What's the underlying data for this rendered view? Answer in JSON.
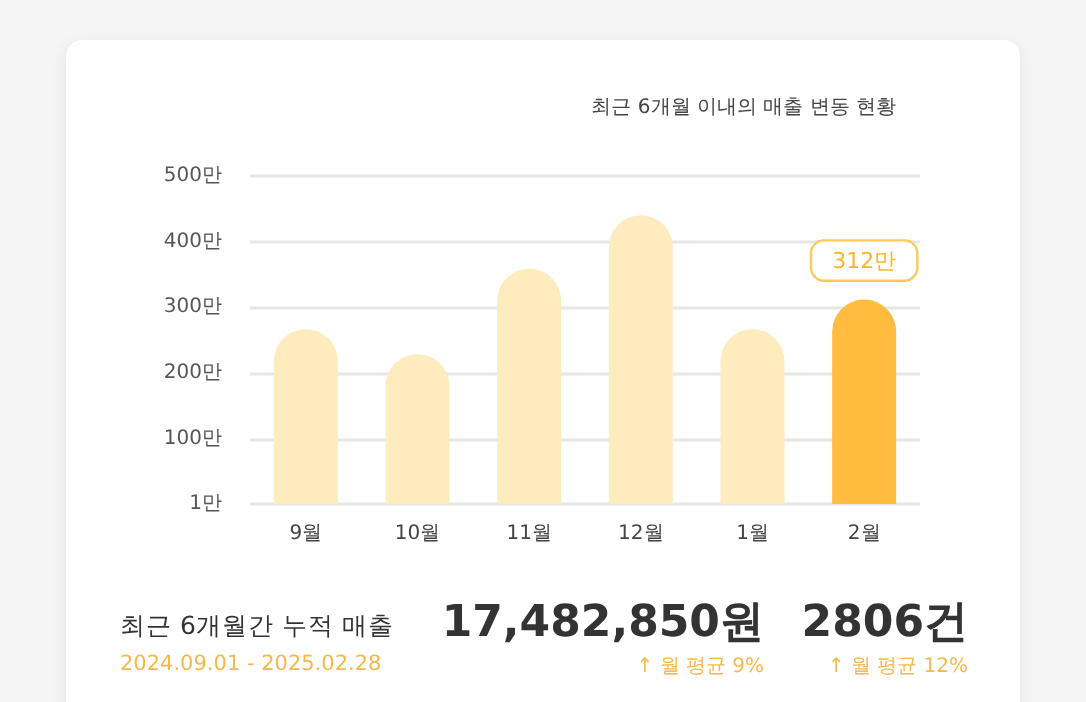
{
  "chart_data": {
    "type": "bar",
    "title": "최근 6개월 이내의 매출 변동 현황",
    "categories": [
      "9월",
      "10월",
      "11월",
      "12월",
      "1월",
      "2월"
    ],
    "values": [
      267,
      229,
      359,
      440,
      267,
      312
    ],
    "colors": [
      "#feebbe",
      "#feebbe",
      "#feebbe",
      "#feebbe",
      "#feebbe",
      "#ffbc3f"
    ],
    "value_labels": [
      null,
      null,
      null,
      null,
      null,
      "312만"
    ],
    "ylim": [
      1,
      500
    ],
    "yticks": [
      {
        "value": 1,
        "label": "1만"
      },
      {
        "value": 100,
        "label": "100만"
      },
      {
        "value": 200,
        "label": "200만"
      },
      {
        "value": 300,
        "label": "300만"
      },
      {
        "value": 400,
        "label": "400만"
      },
      {
        "value": 500,
        "label": "500만"
      }
    ],
    "grid": "y",
    "annotations": [
      "최근 6개월간 누적 매출",
      "2024.09.01 - 2025.02.28",
      "17,482,850원",
      "2806건",
      "↑ 월 평균 9%",
      "↑ 월 평균 12%"
    ]
  }
}
